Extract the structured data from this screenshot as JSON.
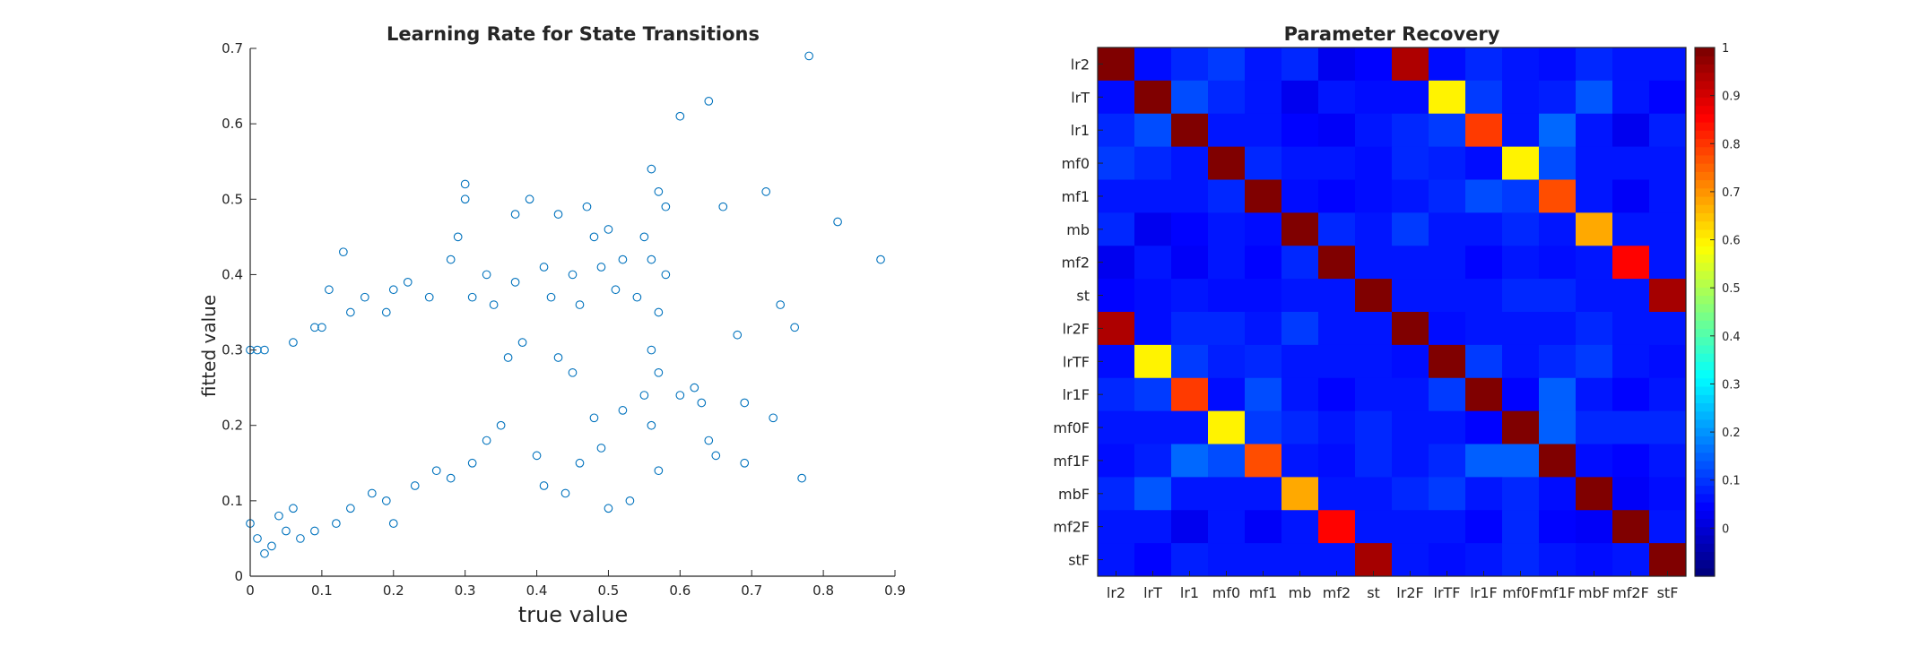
{
  "chart_data": [
    {
      "type": "scatter",
      "title": "Learning Rate for State Transitions",
      "xlabel": "true value",
      "ylabel": "fitted value",
      "xlim": [
        0,
        0.9
      ],
      "ylim": [
        0,
        0.7
      ],
      "xticks": [
        "0",
        "0.1",
        "0.2",
        "0.3",
        "0.4",
        "0.5",
        "0.6",
        "0.7",
        "0.8",
        "0.9"
      ],
      "yticks": [
        "0",
        "0.1",
        "0.2",
        "0.3",
        "0.4",
        "0.5",
        "0.6",
        "0.7"
      ],
      "marker": "open-circle",
      "color": "#0072BD",
      "grid": false,
      "points": [
        [
          0.78,
          0.69
        ],
        [
          0.64,
          0.63
        ],
        [
          0.6,
          0.61
        ],
        [
          0.88,
          0.42
        ],
        [
          0.82,
          0.47
        ],
        [
          0.72,
          0.51
        ],
        [
          0.76,
          0.33
        ],
        [
          0.74,
          0.36
        ],
        [
          0.77,
          0.13
        ],
        [
          0.69,
          0.15
        ],
        [
          0.68,
          0.32
        ],
        [
          0.69,
          0.23
        ],
        [
          0.73,
          0.21
        ],
        [
          0.66,
          0.49
        ],
        [
          0.65,
          0.16
        ],
        [
          0.64,
          0.18
        ],
        [
          0.63,
          0.23
        ],
        [
          0.56,
          0.54
        ],
        [
          0.57,
          0.51
        ],
        [
          0.58,
          0.49
        ],
        [
          0.55,
          0.45
        ],
        [
          0.56,
          0.42
        ],
        [
          0.58,
          0.4
        ],
        [
          0.57,
          0.35
        ],
        [
          0.56,
          0.3
        ],
        [
          0.57,
          0.27
        ],
        [
          0.56,
          0.2
        ],
        [
          0.57,
          0.14
        ],
        [
          0.53,
          0.1
        ],
        [
          0.5,
          0.09
        ],
        [
          0.3,
          0.52
        ],
        [
          0.3,
          0.5
        ],
        [
          0.13,
          0.43
        ],
        [
          0.39,
          0.5
        ],
        [
          0.47,
          0.49
        ],
        [
          0.43,
          0.48
        ],
        [
          0.37,
          0.48
        ],
        [
          0.5,
          0.46
        ],
        [
          0.48,
          0.45
        ],
        [
          0.52,
          0.42
        ],
        [
          0.28,
          0.42
        ],
        [
          0.29,
          0.45
        ],
        [
          0.33,
          0.4
        ],
        [
          0.37,
          0.39
        ],
        [
          0.41,
          0.41
        ],
        [
          0.45,
          0.4
        ],
        [
          0.49,
          0.41
        ],
        [
          0.51,
          0.38
        ],
        [
          0.54,
          0.37
        ],
        [
          0.42,
          0.37
        ],
        [
          0.46,
          0.36
        ],
        [
          0.31,
          0.37
        ],
        [
          0.34,
          0.36
        ],
        [
          0.25,
          0.37
        ],
        [
          0.22,
          0.39
        ],
        [
          0.2,
          0.38
        ],
        [
          0.19,
          0.35
        ],
        [
          0.16,
          0.37
        ],
        [
          0.14,
          0.35
        ],
        [
          0.11,
          0.38
        ],
        [
          0.09,
          0.33
        ],
        [
          0.1,
          0.33
        ],
        [
          0.06,
          0.31
        ],
        [
          0.02,
          0.3
        ],
        [
          0.0,
          0.3
        ],
        [
          0.01,
          0.3
        ],
        [
          0.62,
          0.25
        ],
        [
          0.6,
          0.24
        ],
        [
          0.55,
          0.24
        ],
        [
          0.52,
          0.22
        ],
        [
          0.48,
          0.21
        ],
        [
          0.49,
          0.17
        ],
        [
          0.46,
          0.15
        ],
        [
          0.44,
          0.11
        ],
        [
          0.41,
          0.12
        ],
        [
          0.4,
          0.16
        ],
        [
          0.45,
          0.27
        ],
        [
          0.43,
          0.29
        ],
        [
          0.38,
          0.31
        ],
        [
          0.36,
          0.29
        ],
        [
          0.35,
          0.2
        ],
        [
          0.33,
          0.18
        ],
        [
          0.31,
          0.15
        ],
        [
          0.28,
          0.13
        ],
        [
          0.26,
          0.14
        ],
        [
          0.23,
          0.12
        ],
        [
          0.2,
          0.07
        ],
        [
          0.19,
          0.1
        ],
        [
          0.17,
          0.11
        ],
        [
          0.14,
          0.09
        ],
        [
          0.12,
          0.07
        ],
        [
          0.09,
          0.06
        ],
        [
          0.07,
          0.05
        ],
        [
          0.05,
          0.06
        ],
        [
          0.03,
          0.04
        ],
        [
          0.02,
          0.03
        ],
        [
          0.01,
          0.05
        ],
        [
          0.0,
          0.07
        ],
        [
          0.04,
          0.08
        ],
        [
          0.06,
          0.09
        ]
      ]
    },
    {
      "type": "heatmap",
      "title": "Parameter Recovery",
      "labels": [
        "lr2",
        "lrT",
        "lr1",
        "mf0",
        "mf1",
        "mb",
        "mf2",
        "st",
        "lr2F",
        "lrTF",
        "lr1F",
        "mf0F",
        "mf1F",
        "mbF",
        "mf2F",
        "stF"
      ],
      "colormap": "jet",
      "clim": [
        -0.1,
        1.0
      ],
      "colorbar_ticks": [
        "0",
        "0.1",
        "0.2",
        "0.3",
        "0.4",
        "0.5",
        "0.6",
        "0.7",
        "0.8",
        "0.9",
        "1"
      ],
      "matrix": [
        [
          1.0,
          0.05,
          0.08,
          0.1,
          0.06,
          0.08,
          0.02,
          0.04,
          0.95,
          0.05,
          0.08,
          0.06,
          0.05,
          0.08,
          0.06,
          0.06
        ],
        [
          0.05,
          1.0,
          0.12,
          0.08,
          0.06,
          0.02,
          0.06,
          0.05,
          0.05,
          0.6,
          0.1,
          0.06,
          0.07,
          0.13,
          0.06,
          0.04
        ],
        [
          0.08,
          0.12,
          1.0,
          0.06,
          0.06,
          0.04,
          0.03,
          0.06,
          0.08,
          0.1,
          0.8,
          0.06,
          0.15,
          0.06,
          0.02,
          0.07
        ],
        [
          0.1,
          0.08,
          0.06,
          1.0,
          0.08,
          0.06,
          0.06,
          0.05,
          0.08,
          0.07,
          0.05,
          0.6,
          0.12,
          0.06,
          0.06,
          0.06
        ],
        [
          0.06,
          0.06,
          0.06,
          0.08,
          1.0,
          0.05,
          0.04,
          0.05,
          0.06,
          0.08,
          0.12,
          0.1,
          0.78,
          0.06,
          0.03,
          0.06
        ],
        [
          0.08,
          0.02,
          0.04,
          0.06,
          0.05,
          1.0,
          0.08,
          0.06,
          0.1,
          0.06,
          0.06,
          0.08,
          0.06,
          0.68,
          0.06,
          0.06
        ],
        [
          0.02,
          0.06,
          0.03,
          0.06,
          0.04,
          0.08,
          1.0,
          0.06,
          0.06,
          0.06,
          0.04,
          0.06,
          0.05,
          0.06,
          0.86,
          0.06
        ],
        [
          0.04,
          0.05,
          0.06,
          0.05,
          0.05,
          0.06,
          0.06,
          1.0,
          0.06,
          0.06,
          0.06,
          0.08,
          0.08,
          0.06,
          0.06,
          0.96
        ],
        [
          0.95,
          0.05,
          0.08,
          0.08,
          0.06,
          0.1,
          0.06,
          0.06,
          1.0,
          0.05,
          0.06,
          0.06,
          0.06,
          0.08,
          0.06,
          0.06
        ],
        [
          0.05,
          0.6,
          0.1,
          0.07,
          0.08,
          0.06,
          0.06,
          0.06,
          0.05,
          1.0,
          0.1,
          0.06,
          0.08,
          0.1,
          0.06,
          0.05
        ],
        [
          0.08,
          0.1,
          0.8,
          0.05,
          0.12,
          0.06,
          0.04,
          0.06,
          0.06,
          0.1,
          1.0,
          0.04,
          0.14,
          0.06,
          0.04,
          0.06
        ],
        [
          0.06,
          0.06,
          0.06,
          0.6,
          0.1,
          0.08,
          0.06,
          0.08,
          0.06,
          0.06,
          0.04,
          1.0,
          0.14,
          0.08,
          0.08,
          0.08
        ],
        [
          0.05,
          0.07,
          0.15,
          0.12,
          0.78,
          0.06,
          0.05,
          0.08,
          0.06,
          0.08,
          0.14,
          0.14,
          1.0,
          0.05,
          0.04,
          0.06
        ],
        [
          0.08,
          0.13,
          0.06,
          0.06,
          0.06,
          0.68,
          0.06,
          0.06,
          0.08,
          0.1,
          0.06,
          0.08,
          0.05,
          1.0,
          0.03,
          0.05
        ],
        [
          0.06,
          0.06,
          0.02,
          0.06,
          0.03,
          0.06,
          0.86,
          0.06,
          0.06,
          0.06,
          0.04,
          0.08,
          0.04,
          0.03,
          1.0,
          0.06
        ],
        [
          0.06,
          0.04,
          0.07,
          0.06,
          0.06,
          0.06,
          0.06,
          0.96,
          0.06,
          0.05,
          0.06,
          0.08,
          0.06,
          0.05,
          0.06,
          1.0
        ]
      ]
    }
  ]
}
